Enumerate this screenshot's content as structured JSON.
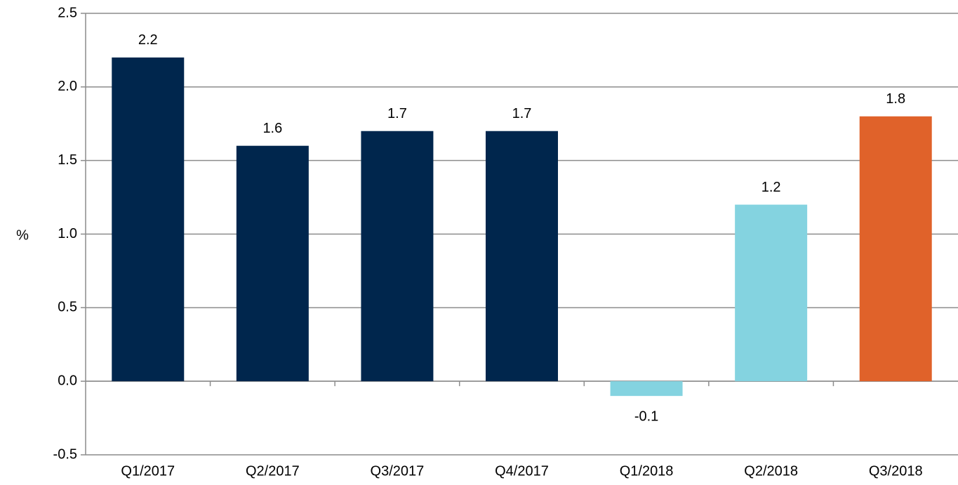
{
  "chart_data": {
    "type": "bar",
    "y_label": "%",
    "categories": [
      "Q1/2017",
      "Q2/2017",
      "Q3/2017",
      "Q4/2017",
      "Q1/2018",
      "Q2/2018",
      "Q3/2018"
    ],
    "values": [
      2.2,
      1.6,
      1.7,
      1.7,
      -0.1,
      1.2,
      1.8
    ],
    "colors": [
      "#00264d",
      "#00264d",
      "#00264d",
      "#00264d",
      "#84d3e0",
      "#84d3e0",
      "#e0622a"
    ],
    "ylim": [
      -0.5,
      2.5
    ],
    "yticks": [
      -0.5,
      {
        "value": 0,
        "label": "0.0"
      },
      0.5,
      {
        "value": 1,
        "label": "1.0"
      },
      1.5,
      {
        "value": 2,
        "label": "2.0"
      },
      2.5
    ],
    "grid": true
  }
}
